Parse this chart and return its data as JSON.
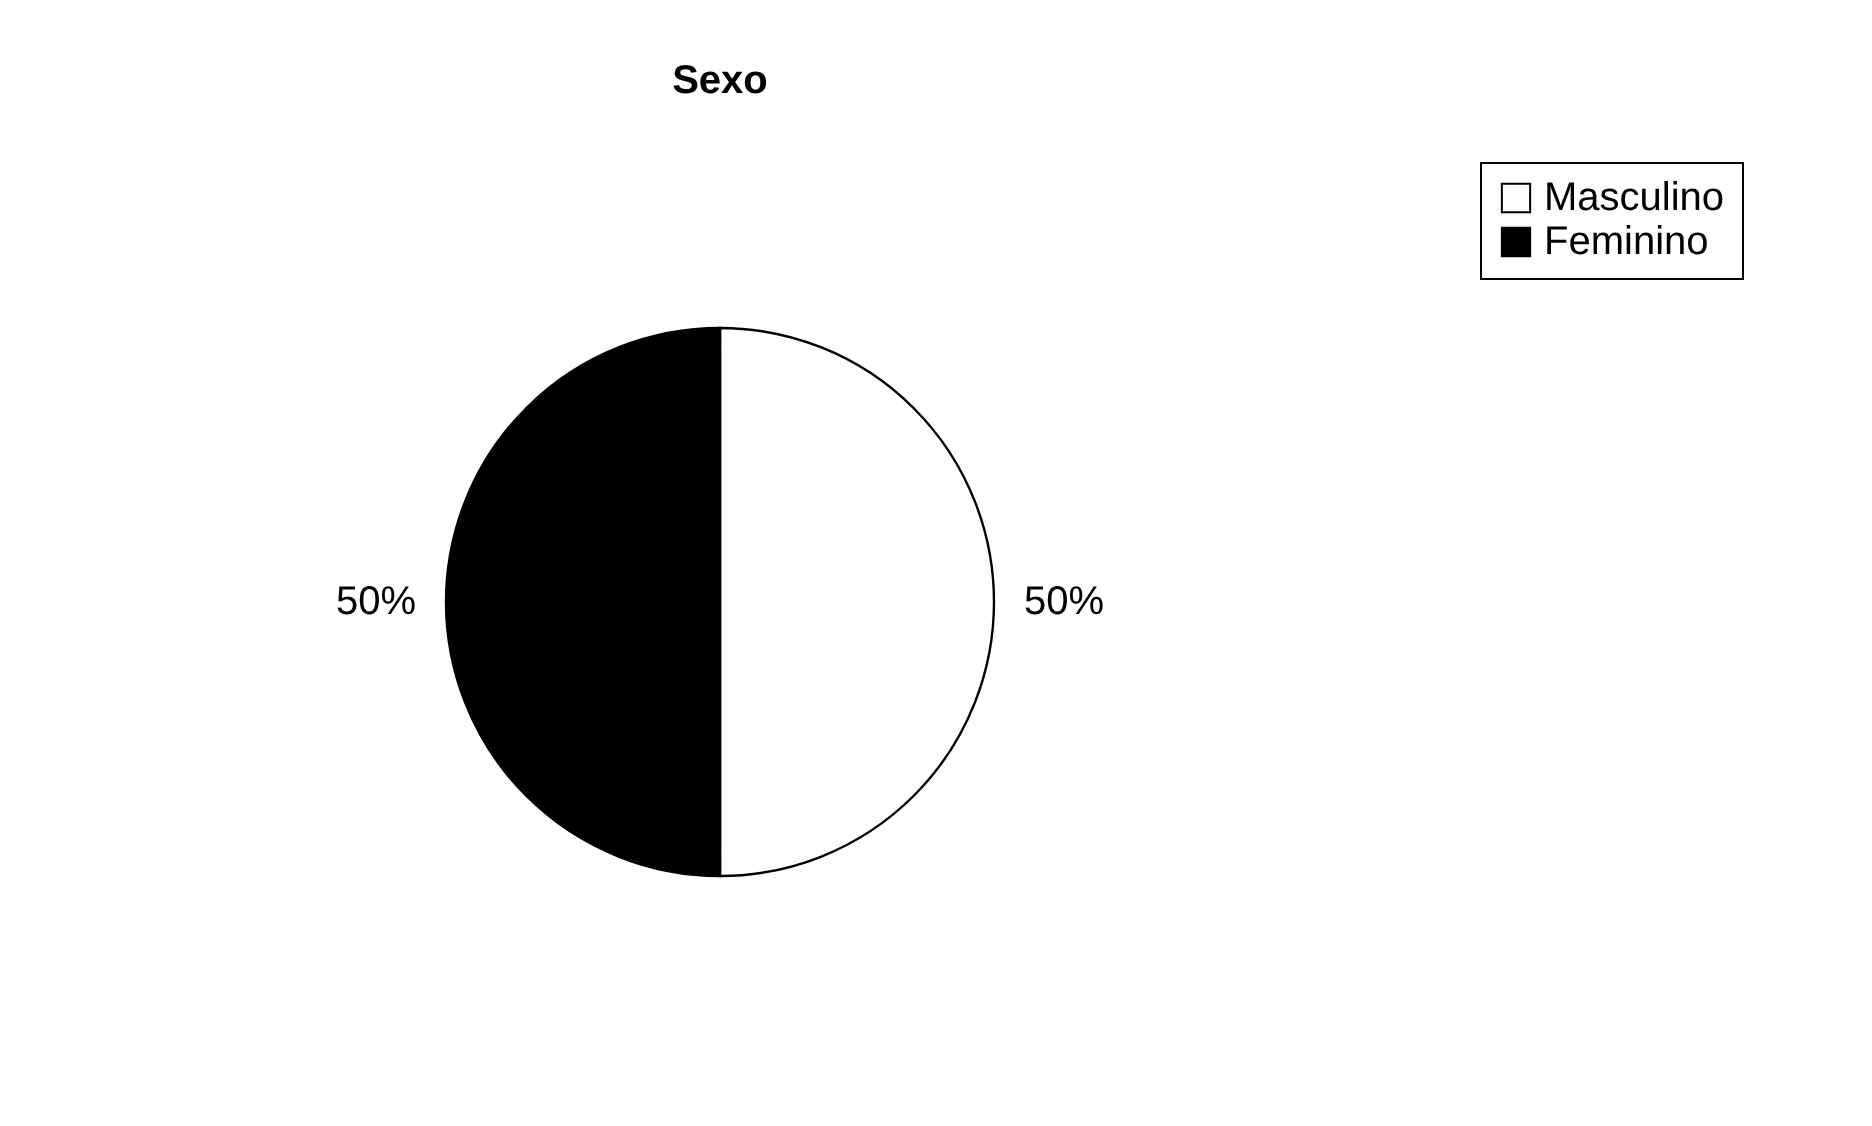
{
  "chart_data": {
    "type": "pie",
    "title": "Sexo",
    "categories": [
      "Masculino",
      "Feminino"
    ],
    "values": [
      50,
      50
    ],
    "colors": [
      "#ffffff",
      "#000000"
    ],
    "value_labels": [
      "50%",
      "50%"
    ],
    "legend": "right"
  }
}
